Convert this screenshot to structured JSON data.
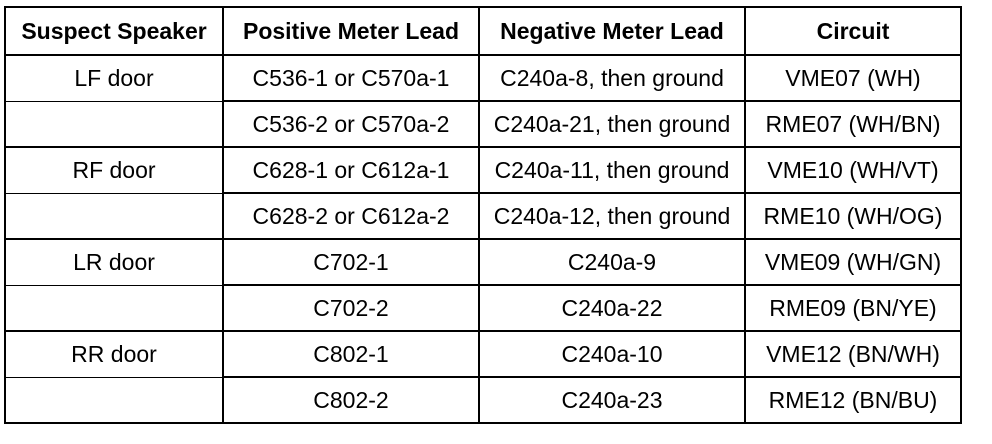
{
  "table": {
    "headers": [
      "Suspect Speaker",
      "Positive Meter Lead",
      "Negative Meter Lead",
      "Circuit"
    ],
    "rows": [
      [
        "LF door",
        "C536-1 or C570a-1",
        "C240a-8, then ground",
        "VME07 (WH)"
      ],
      [
        "",
        "C536-2 or C570a-2",
        "C240a-21, then ground",
        "RME07 (WH/BN)"
      ],
      [
        "RF door",
        "C628-1 or C612a-1",
        "C240a-11, then ground",
        "VME10 (WH/VT)"
      ],
      [
        "",
        "C628-2 or C612a-2",
        "C240a-12, then ground",
        "RME10 (WH/OG)"
      ],
      [
        "LR door",
        "C702-1",
        "C240a-9",
        "VME09 (WH/GN)"
      ],
      [
        "",
        "C702-2",
        "C240a-22",
        "RME09 (BN/YE)"
      ],
      [
        "RR door",
        "C802-1",
        "C240a-10",
        "VME12 (BN/WH)"
      ],
      [
        "",
        "C802-2",
        "C240a-23",
        "RME12 (BN/BU)"
      ]
    ]
  }
}
